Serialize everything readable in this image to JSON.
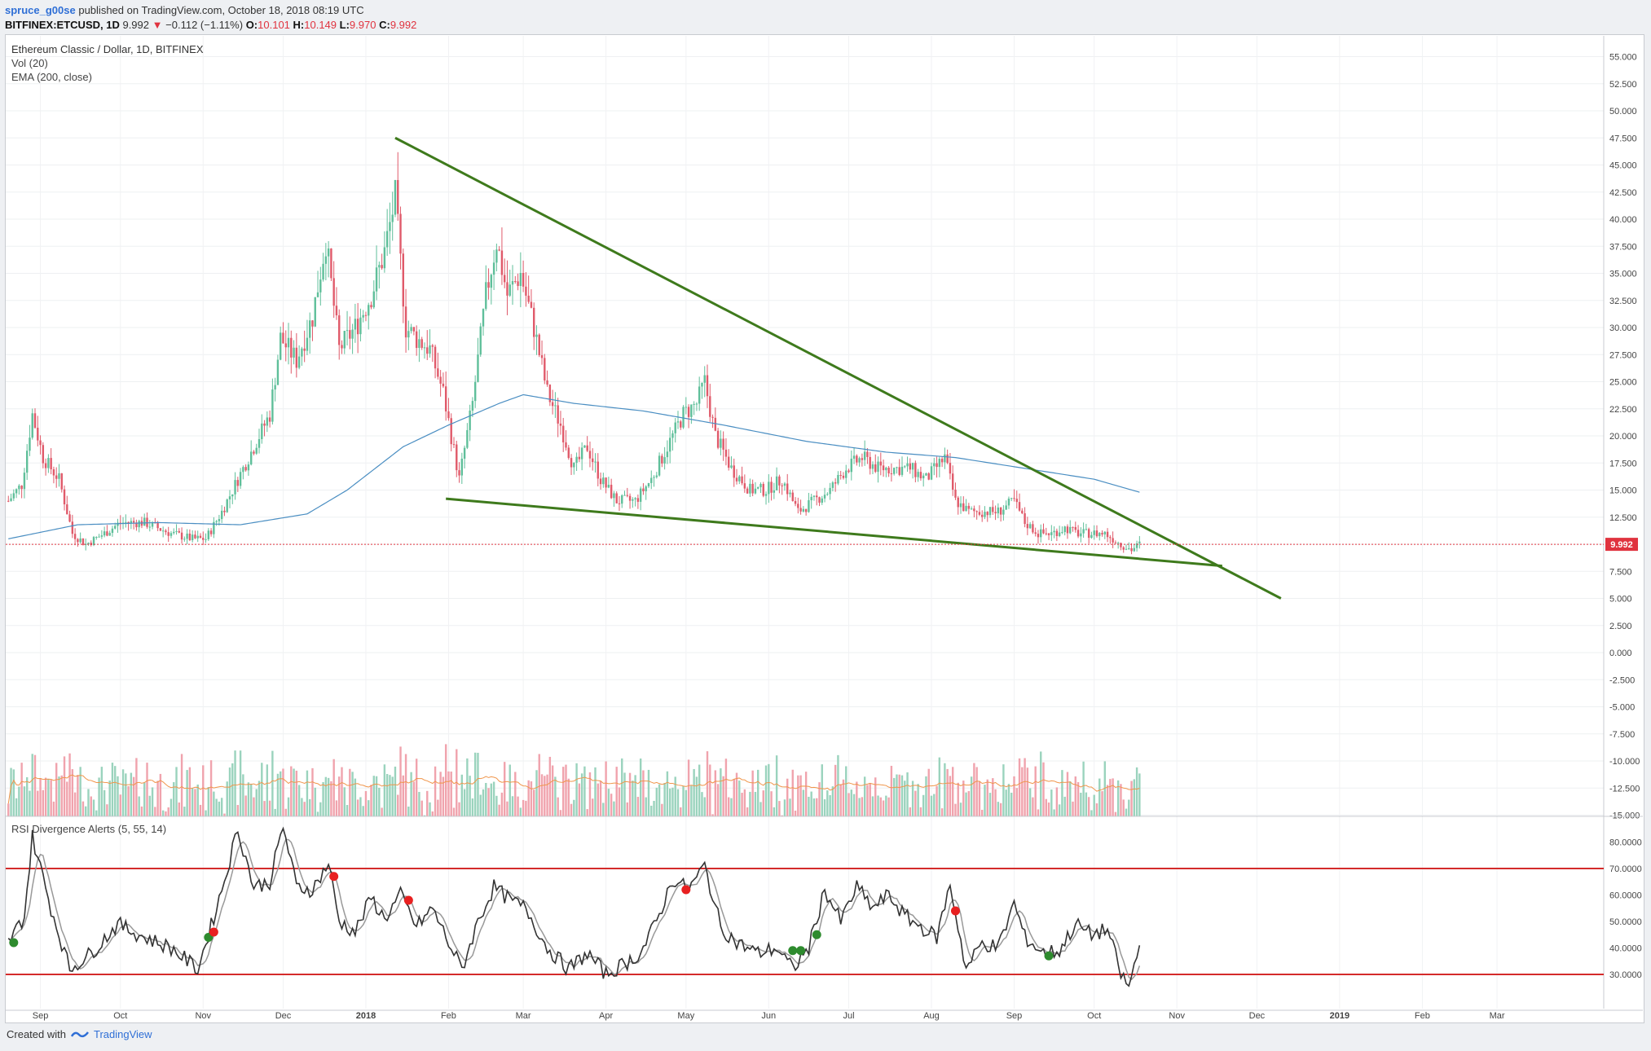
{
  "header": {
    "user": "spruce_g00se",
    "published": " published on TradingView.com, October 18, 2018 08:19 UTC",
    "symbol": "BITFINEX:ETCUSD, 1D",
    "last": "9.992",
    "change": "−0.112 (−1.11%)",
    "ohlc_o": "10.101",
    "ohlc_h": "10.149",
    "ohlc_l": "9.970",
    "ohlc_c": "9.992"
  },
  "legend": {
    "title": "Ethereum Classic / Dollar, 1D, BITFINEX",
    "vol": "Vol (20)",
    "ema": "EMA (200, close)"
  },
  "rsi_title": "RSI Divergence Alerts (5, 55, 14)",
  "footer": {
    "created_with": "Created with",
    "brand": "TradingView"
  },
  "chart_data": {
    "type": "candlestick",
    "colors": {
      "up": "#5fbf9a",
      "down": "#e05a6a",
      "ema": "#4a8ec2",
      "trendline": "#3e7a1c",
      "rsi_band": "#d42b2b",
      "rsi": "#333333",
      "rsi_signal": "#999999",
      "vol_ma": "#f0954a",
      "last_price": "#e0333f"
    },
    "price_axis": [
      "55.000",
      "52.500",
      "50.000",
      "47.500",
      "45.000",
      "42.500",
      "40.000",
      "37.500",
      "35.000",
      "32.500",
      "30.000",
      "27.500",
      "25.000",
      "22.500",
      "20.000",
      "17.500",
      "15.000",
      "12.500",
      "10.000",
      "7.500",
      "5.000",
      "2.500",
      "0.000",
      "-2.500",
      "-5.000",
      "-7.500",
      "-10.000",
      "-12.500",
      "-15.000"
    ],
    "price_range": [
      -15,
      56
    ],
    "last_price_label": "9.992",
    "time_axis": [
      "Sep",
      "Oct",
      "Nov",
      "Dec",
      "2018",
      "Feb",
      "Mar",
      "Apr",
      "May",
      "Jun",
      "Jul",
      "Aug",
      "Sep",
      "Oct",
      "Nov",
      "Dec",
      "2019",
      "Feb",
      "Mar"
    ],
    "price_keypoints": [
      [
        "2017-08-20",
        14
      ],
      [
        "2017-08-25",
        15.5
      ],
      [
        "2017-08-29",
        22
      ],
      [
        "2017-09-02",
        18
      ],
      [
        "2017-09-08",
        16
      ],
      [
        "2017-09-13",
        11
      ],
      [
        "2017-09-18",
        10
      ],
      [
        "2017-09-25",
        11
      ],
      [
        "2017-10-01",
        12
      ],
      [
        "2017-10-10",
        12
      ],
      [
        "2017-10-20",
        11
      ],
      [
        "2017-10-28",
        10.5
      ],
      [
        "2017-11-02",
        10.5
      ],
      [
        "2017-11-08",
        13
      ],
      [
        "2017-11-14",
        16
      ],
      [
        "2017-11-20",
        19
      ],
      [
        "2017-11-26",
        22
      ],
      [
        "2017-11-30",
        29
      ],
      [
        "2017-12-06",
        27
      ],
      [
        "2017-12-12",
        31
      ],
      [
        "2017-12-17",
        38
      ],
      [
        "2017-12-22",
        28
      ],
      [
        "2017-12-28",
        30
      ],
      [
        "2018-01-03",
        33
      ],
      [
        "2018-01-08",
        37
      ],
      [
        "2018-01-12",
        42
      ],
      [
        "2018-01-16",
        30
      ],
      [
        "2018-01-20",
        29
      ],
      [
        "2018-01-25",
        28
      ],
      [
        "2018-01-30",
        24
      ],
      [
        "2018-02-05",
        16
      ],
      [
        "2018-02-10",
        23
      ],
      [
        "2018-02-15",
        33
      ],
      [
        "2018-02-19",
        38
      ],
      [
        "2018-02-23",
        33
      ],
      [
        "2018-02-28",
        35
      ],
      [
        "2018-03-05",
        30
      ],
      [
        "2018-03-10",
        24
      ],
      [
        "2018-03-15",
        21
      ],
      [
        "2018-03-20",
        17
      ],
      [
        "2018-03-25",
        19
      ],
      [
        "2018-03-30",
        16
      ],
      [
        "2018-04-05",
        14
      ],
      [
        "2018-04-12",
        14
      ],
      [
        "2018-04-18",
        16
      ],
      [
        "2018-04-24",
        19
      ],
      [
        "2018-04-30",
        22
      ],
      [
        "2018-05-05",
        23
      ],
      [
        "2018-05-08",
        25
      ],
      [
        "2018-05-12",
        20
      ],
      [
        "2018-05-18",
        17
      ],
      [
        "2018-05-25",
        15
      ],
      [
        "2018-05-31",
        15
      ],
      [
        "2018-06-06",
        16
      ],
      [
        "2018-06-12",
        13
      ],
      [
        "2018-06-18",
        14
      ],
      [
        "2018-06-24",
        15
      ],
      [
        "2018-06-30",
        17
      ],
      [
        "2018-07-06",
        18
      ],
      [
        "2018-07-12",
        17
      ],
      [
        "2018-07-18",
        17
      ],
      [
        "2018-07-24",
        17
      ],
      [
        "2018-07-30",
        16
      ],
      [
        "2018-08-06",
        18
      ],
      [
        "2018-08-10",
        14
      ],
      [
        "2018-08-15",
        13
      ],
      [
        "2018-08-20",
        13
      ],
      [
        "2018-08-26",
        13
      ],
      [
        "2018-09-01",
        14
      ],
      [
        "2018-09-05",
        12
      ],
      [
        "2018-09-10",
        11
      ],
      [
        "2018-09-15",
        11
      ],
      [
        "2018-09-20",
        11.5
      ],
      [
        "2018-09-25",
        11
      ],
      [
        "2018-09-30",
        11
      ],
      [
        "2018-10-05",
        11
      ],
      [
        "2018-10-11",
        10
      ],
      [
        "2018-10-15",
        9.5
      ],
      [
        "2018-10-18",
        10
      ]
    ],
    "ema_keypoints": [
      [
        "2017-08-20",
        10.5
      ],
      [
        "2017-09-15",
        11.8
      ],
      [
        "2017-10-15",
        12
      ],
      [
        "2017-11-15",
        11.8
      ],
      [
        "2017-12-10",
        12.8
      ],
      [
        "2017-12-25",
        15
      ],
      [
        "2018-01-15",
        19
      ],
      [
        "2018-02-01",
        21
      ],
      [
        "2018-02-20",
        23
      ],
      [
        "2018-03-01",
        23.8
      ],
      [
        "2018-03-20",
        23
      ],
      [
        "2018-04-15",
        22.3
      ],
      [
        "2018-05-15",
        21
      ],
      [
        "2018-06-15",
        19.5
      ],
      [
        "2018-07-15",
        18.5
      ],
      [
        "2018-08-10",
        18
      ],
      [
        "2018-09-05",
        17
      ],
      [
        "2018-10-01",
        16
      ],
      [
        "2018-10-18",
        14.8
      ]
    ],
    "trendlines": [
      {
        "from": [
          "2018-01-12",
          47.5
        ],
        "to": [
          "2018-12-10",
          5
        ]
      },
      {
        "from": [
          "2018-01-31",
          14.2
        ],
        "to": [
          "2018-11-18",
          8
        ]
      }
    ],
    "rsi_axis": [
      "80.0000",
      "70.0000",
      "60.0000",
      "50.0000",
      "40.0000",
      "30.0000"
    ],
    "rsi_range": [
      22,
      87
    ],
    "rsi_levels": [
      70,
      30
    ],
    "rsi_keypoints": [
      [
        "2017-08-20",
        42
      ],
      [
        "2017-08-26",
        52
      ],
      [
        "2017-08-29",
        82
      ],
      [
        "2017-09-05",
        55
      ],
      [
        "2017-09-12",
        32
      ],
      [
        "2017-09-20",
        38
      ],
      [
        "2017-09-30",
        49
      ],
      [
        "2017-10-10",
        44
      ],
      [
        "2017-10-20",
        40
      ],
      [
        "2017-10-30",
        32
      ],
      [
        "2017-11-03",
        45
      ],
      [
        "2017-11-08",
        62
      ],
      [
        "2017-11-14",
        85
      ],
      [
        "2017-11-20",
        63
      ],
      [
        "2017-11-26",
        65
      ],
      [
        "2017-12-01",
        86
      ],
      [
        "2017-12-06",
        63
      ],
      [
        "2017-12-12",
        62
      ],
      [
        "2017-12-18",
        72
      ],
      [
        "2017-12-22",
        50
      ],
      [
        "2017-12-28",
        46
      ],
      [
        "2018-01-03",
        59
      ],
      [
        "2018-01-08",
        51
      ],
      [
        "2018-01-14",
        60
      ],
      [
        "2018-01-20",
        48
      ],
      [
        "2018-01-26",
        55
      ],
      [
        "2018-02-01",
        42
      ],
      [
        "2018-02-06",
        32
      ],
      [
        "2018-02-12",
        50
      ],
      [
        "2018-02-18",
        63
      ],
      [
        "2018-02-24",
        58
      ],
      [
        "2018-03-02",
        55
      ],
      [
        "2018-03-10",
        40
      ],
      [
        "2018-03-18",
        32
      ],
      [
        "2018-03-25",
        38
      ],
      [
        "2018-04-01",
        30
      ],
      [
        "2018-04-08",
        34
      ],
      [
        "2018-04-14",
        38
      ],
      [
        "2018-04-20",
        50
      ],
      [
        "2018-04-26",
        66
      ],
      [
        "2018-05-02",
        62
      ],
      [
        "2018-05-08",
        71
      ],
      [
        "2018-05-14",
        48
      ],
      [
        "2018-05-20",
        42
      ],
      [
        "2018-05-28",
        38
      ],
      [
        "2018-06-04",
        40
      ],
      [
        "2018-06-10",
        32
      ],
      [
        "2018-06-16",
        40
      ],
      [
        "2018-06-22",
        62
      ],
      [
        "2018-06-28",
        50
      ],
      [
        "2018-07-04",
        63
      ],
      [
        "2018-07-10",
        55
      ],
      [
        "2018-07-16",
        60
      ],
      [
        "2018-07-22",
        52
      ],
      [
        "2018-07-28",
        48
      ],
      [
        "2018-08-03",
        44
      ],
      [
        "2018-08-08",
        64
      ],
      [
        "2018-08-14",
        32
      ],
      [
        "2018-08-20",
        42
      ],
      [
        "2018-08-26",
        40
      ],
      [
        "2018-09-01",
        57
      ],
      [
        "2018-09-05",
        44
      ],
      [
        "2018-09-12",
        38
      ],
      [
        "2018-09-18",
        39
      ],
      [
        "2018-09-24",
        49
      ],
      [
        "2018-09-30",
        45
      ],
      [
        "2018-10-06",
        47
      ],
      [
        "2018-10-11",
        30
      ],
      [
        "2018-10-14",
        25
      ],
      [
        "2018-10-18",
        41
      ]
    ],
    "rsi_bull_markers": [
      [
        "2017-08-22",
        42
      ],
      [
        "2017-11-03",
        44
      ],
      [
        "2018-06-10",
        39
      ],
      [
        "2018-06-13",
        39
      ],
      [
        "2018-06-19",
        45
      ],
      [
        "2018-09-14",
        37
      ]
    ],
    "rsi_bear_markers": [
      [
        "2017-11-05",
        46
      ],
      [
        "2017-12-20",
        67
      ],
      [
        "2018-01-17",
        58
      ],
      [
        "2018-05-01",
        62
      ],
      [
        "2018-08-10",
        54
      ]
    ]
  }
}
